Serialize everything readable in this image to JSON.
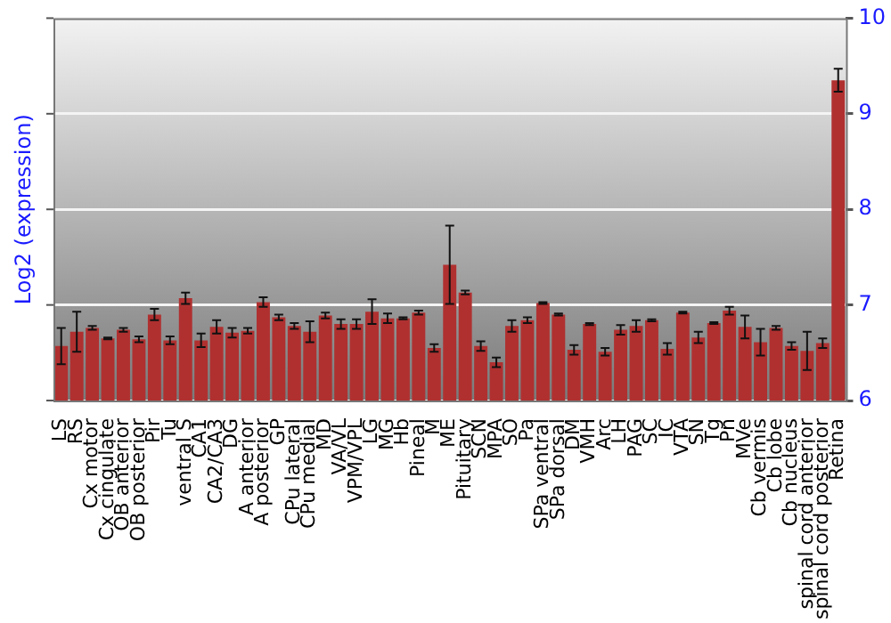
{
  "chart_data": {
    "type": "bar",
    "ylabel": "Log2 (expression)",
    "categories": [
      "LS",
      "RS",
      "Cx motor",
      "Cx cingulate",
      "OB anterior",
      "OB posterior",
      "Pir",
      "Tu",
      "ventral S",
      "CA1",
      "CA2/CA3",
      "DG",
      "A anterior",
      "A posterior",
      "GP",
      "CPu lateral",
      "CPu medial",
      "MD",
      "VA/VL",
      "VPM/VPL",
      "LG",
      "MG",
      "Hb",
      "Pineal",
      "M",
      "ME",
      "Pituitary",
      "SCN",
      "MPA",
      "SO",
      "Pa",
      "SPa ventral",
      "SPa dorsal",
      "DM",
      "VMH",
      "Arc",
      "LH",
      "PAG",
      "SC",
      "IC",
      "VTA",
      "SN",
      "Tg",
      "Pn",
      "MVe",
      "Cb vermis",
      "Cb lobe",
      "Cb nucleus",
      "spinal cord anterior",
      "spinal cord posterior",
      "Retina"
    ],
    "values": [
      6.57,
      6.72,
      6.76,
      6.65,
      6.74,
      6.64,
      6.9,
      6.63,
      7.07,
      6.63,
      6.77,
      6.71,
      6.73,
      7.03,
      6.87,
      6.78,
      6.72,
      6.89,
      6.8,
      6.8,
      6.93,
      6.86,
      6.86,
      6.92,
      6.55,
      7.42,
      7.13,
      6.57,
      6.4,
      6.78,
      6.84,
      7.02,
      6.9,
      6.53,
      6.8,
      6.51,
      6.74,
      6.78,
      6.84,
      6.54,
      6.92,
      6.66,
      6.81,
      6.94,
      6.77,
      6.61,
      6.76,
      6.57,
      6.52,
      6.6,
      9.35
    ],
    "errors": [
      0.19,
      0.21,
      0.02,
      0.01,
      0.02,
      0.03,
      0.06,
      0.04,
      0.06,
      0.07,
      0.07,
      0.05,
      0.03,
      0.05,
      0.03,
      0.03,
      0.11,
      0.03,
      0.05,
      0.05,
      0.13,
      0.05,
      0.01,
      0.02,
      0.04,
      0.41,
      0.02,
      0.05,
      0.05,
      0.06,
      0.03,
      0.01,
      0.01,
      0.05,
      0.01,
      0.04,
      0.05,
      0.06,
      0.01,
      0.06,
      0.01,
      0.06,
      0.01,
      0.04,
      0.12,
      0.14,
      0.02,
      0.04,
      0.2,
      0.05,
      0.12
    ],
    "color": "#b03030",
    "ylim": [
      6,
      10
    ],
    "yticks": [
      6,
      7,
      8,
      9,
      10
    ],
    "grid": "y",
    "legend": false
  }
}
